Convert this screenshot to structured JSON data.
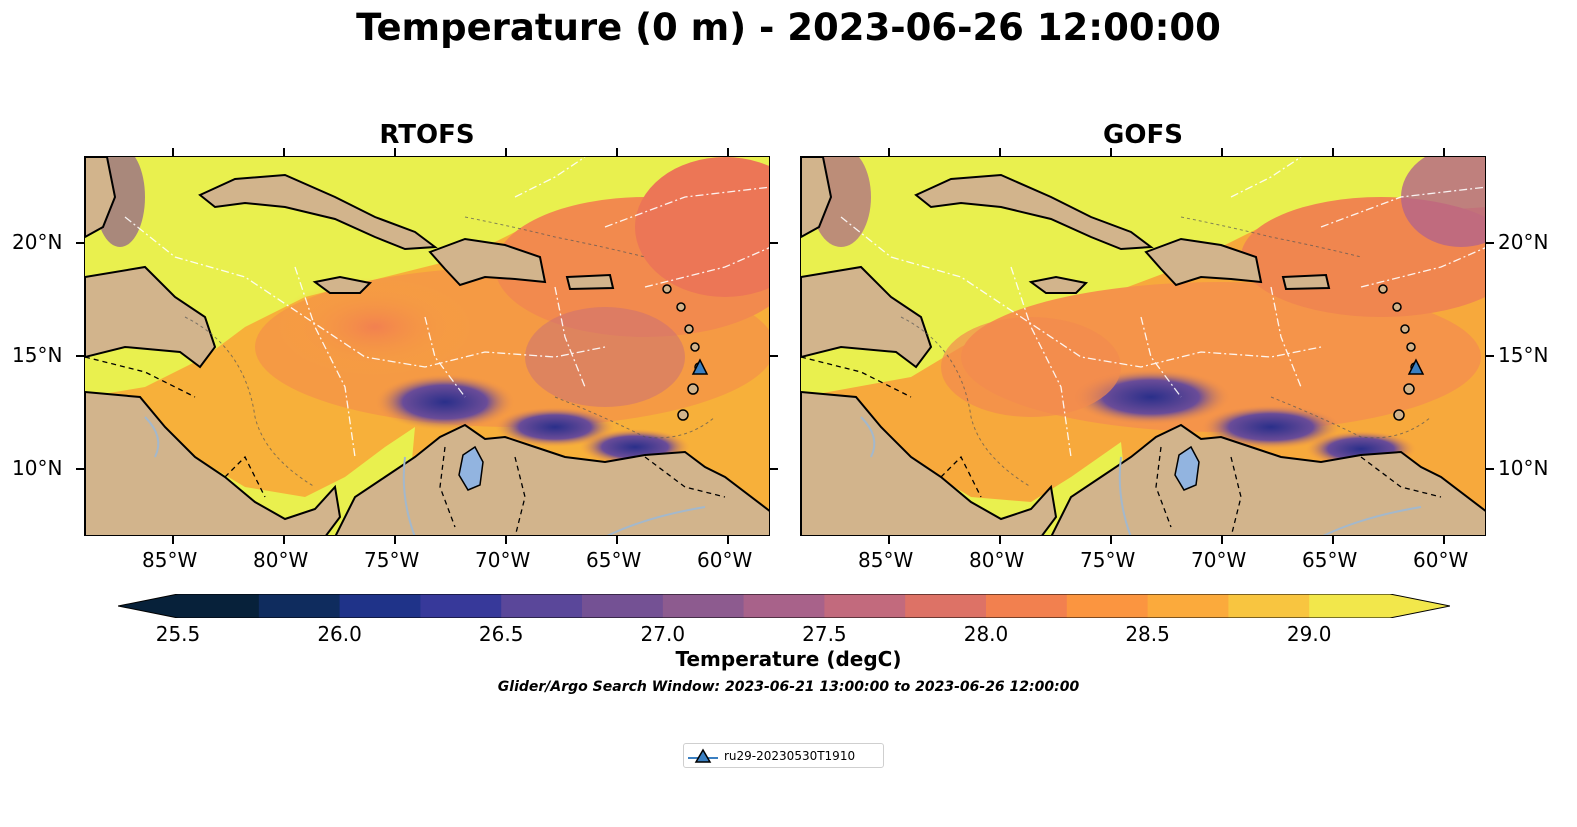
{
  "title": "Temperature (0 m) - 2023-06-26 12:00:00",
  "panels": [
    {
      "title": "RTOFS"
    },
    {
      "title": "GOFS"
    }
  ],
  "lon_ticks": [
    "85°W",
    "80°W",
    "75°W",
    "70°W",
    "65°W",
    "60°W"
  ],
  "lat_ticks": [
    "20°N",
    "15°N",
    "10°N"
  ],
  "colorbar": {
    "title": "Temperature (degC)",
    "labels": [
      "25.5",
      "26.0",
      "26.5",
      "27.0",
      "27.5",
      "28.0",
      "28.5",
      "29.0"
    ],
    "colors": [
      "#07213a",
      "#0f2c5e",
      "#1f3389",
      "#37399a",
      "#5a479a",
      "#745194",
      "#8d5b8f",
      "#a8628a",
      "#c26a7d",
      "#dd7266",
      "#f2804f",
      "#fb9540",
      "#fbaa3c",
      "#f8c540",
      "#f2e74b"
    ],
    "range": [
      25.5,
      29.25
    ],
    "step": 0.25
  },
  "search_window": "Glider/Argo Search Window: 2023-06-21 13:00:00 to 2023-06-26 12:00:00",
  "legend": {
    "label": "ru29-20230530T1910",
    "marker_color": "#3a7fc1"
  },
  "colors": {
    "land": "#d2b48c",
    "lake": "#92b4e0",
    "river": "#a3b8cc"
  }
}
